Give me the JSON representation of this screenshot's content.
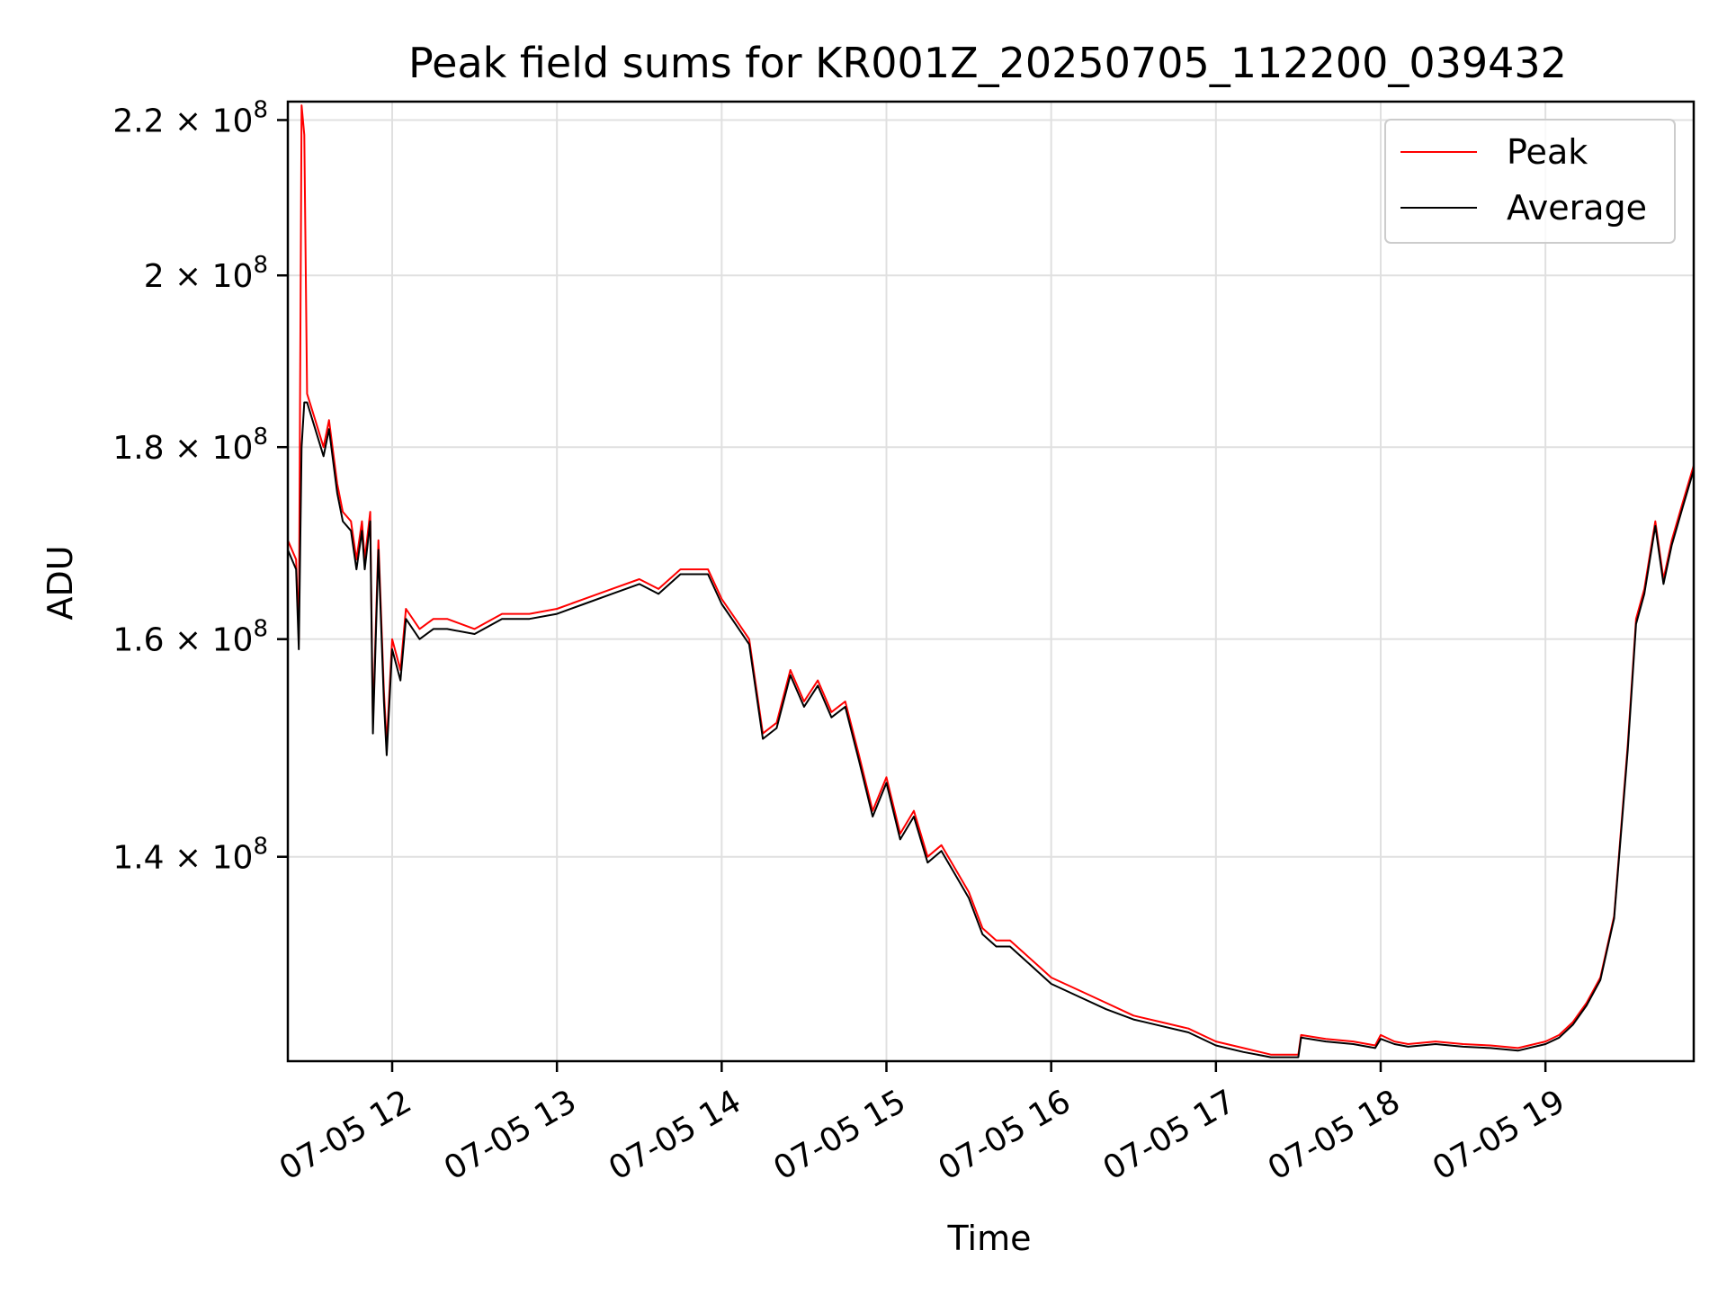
{
  "chart_data": {
    "type": "line",
    "title": "Peak field sums for KR001Z_20250705_112200_039432",
    "xlabel": "Time",
    "ylabel": "ADU",
    "x_ticks": [
      "07-05 12",
      "07-05 13",
      "07-05 14",
      "07-05 15",
      "07-05 16",
      "07-05 17",
      "07-05 18",
      "07-05 19"
    ],
    "y_ticks": [
      {
        "value": 140000000,
        "mantissa": "1.4",
        "exp": "8"
      },
      {
        "value": 160000000,
        "mantissa": "1.6",
        "exp": "8"
      },
      {
        "value": 180000000,
        "mantissa": "1.8",
        "exp": "8"
      },
      {
        "value": 200000000,
        "mantissa": "2",
        "exp": "8"
      },
      {
        "value": 220000000,
        "mantissa": "2.2",
        "exp": "8"
      }
    ],
    "y_scale": "log",
    "xlim": [
      "2025-07-05 11:22",
      "2025-07-05 19:54"
    ],
    "ylim": [
      123500000,
      222500000
    ],
    "grid": true,
    "legend_position": "top-right",
    "colors": {
      "peak": "#ff0000",
      "average": "#000000"
    },
    "series": [
      {
        "name": "Peak",
        "color": "#ff0000",
        "points": [
          [
            "2025-07-05 11:22",
            170000000
          ],
          [
            "2025-07-05 11:25",
            168000000
          ],
          [
            "2025-07-05 11:26",
            160000000
          ],
          [
            "2025-07-05 11:27",
            222000000
          ],
          [
            "2025-07-05 11:28",
            218000000
          ],
          [
            "2025-07-05 11:29",
            186000000
          ],
          [
            "2025-07-05 11:32",
            183000000
          ],
          [
            "2025-07-05 11:35",
            180000000
          ],
          [
            "2025-07-05 11:37",
            183000000
          ],
          [
            "2025-07-05 11:40",
            176000000
          ],
          [
            "2025-07-05 11:42",
            173000000
          ],
          [
            "2025-07-05 11:45",
            172000000
          ],
          [
            "2025-07-05 11:47",
            168000000
          ],
          [
            "2025-07-05 11:49",
            172000000
          ],
          [
            "2025-07-05 11:50",
            168000000
          ],
          [
            "2025-07-05 11:52",
            173000000
          ],
          [
            "2025-07-05 11:53",
            152000000
          ],
          [
            "2025-07-05 11:55",
            170000000
          ],
          [
            "2025-07-05 11:57",
            155000000
          ],
          [
            "2025-07-05 11:58",
            150000000
          ],
          [
            "2025-07-05 12:00",
            160000000
          ],
          [
            "2025-07-05 12:03",
            157000000
          ],
          [
            "2025-07-05 12:05",
            163000000
          ],
          [
            "2025-07-05 12:10",
            161000000
          ],
          [
            "2025-07-05 12:15",
            162000000
          ],
          [
            "2025-07-05 12:20",
            162000000
          ],
          [
            "2025-07-05 12:30",
            161000000
          ],
          [
            "2025-07-05 12:40",
            162500000
          ],
          [
            "2025-07-05 12:50",
            162500000
          ],
          [
            "2025-07-05 13:00",
            163000000
          ],
          [
            "2025-07-05 13:10",
            164000000
          ],
          [
            "2025-07-05 13:20",
            165000000
          ],
          [
            "2025-07-05 13:30",
            166000000
          ],
          [
            "2025-07-05 13:37",
            165000000
          ],
          [
            "2025-07-05 13:45",
            167000000
          ],
          [
            "2025-07-05 13:55",
            167000000
          ],
          [
            "2025-07-05 14:00",
            164000000
          ],
          [
            "2025-07-05 14:05",
            162000000
          ],
          [
            "2025-07-05 14:10",
            160000000
          ],
          [
            "2025-07-05 14:15",
            151000000
          ],
          [
            "2025-07-05 14:20",
            152000000
          ],
          [
            "2025-07-05 14:25",
            157000000
          ],
          [
            "2025-07-05 14:30",
            154000000
          ],
          [
            "2025-07-05 14:35",
            156000000
          ],
          [
            "2025-07-05 14:40",
            153000000
          ],
          [
            "2025-07-05 14:45",
            154000000
          ],
          [
            "2025-07-05 14:50",
            149000000
          ],
          [
            "2025-07-05 14:55",
            144000000
          ],
          [
            "2025-07-05 15:00",
            147000000
          ],
          [
            "2025-07-05 15:05",
            142000000
          ],
          [
            "2025-07-05 15:10",
            144000000
          ],
          [
            "2025-07-05 15:15",
            140000000
          ],
          [
            "2025-07-05 15:20",
            141000000
          ],
          [
            "2025-07-05 15:25",
            139000000
          ],
          [
            "2025-07-05 15:30",
            137000000
          ],
          [
            "2025-07-05 15:35",
            134000000
          ],
          [
            "2025-07-05 15:40",
            133000000
          ],
          [
            "2025-07-05 15:45",
            133000000
          ],
          [
            "2025-07-05 15:50",
            132000000
          ],
          [
            "2025-07-05 15:55",
            131000000
          ],
          [
            "2025-07-05 16:00",
            130000000
          ],
          [
            "2025-07-05 16:10",
            129000000
          ],
          [
            "2025-07-05 16:20",
            128000000
          ],
          [
            "2025-07-05 16:30",
            127000000
          ],
          [
            "2025-07-05 16:40",
            126500000
          ],
          [
            "2025-07-05 16:50",
            126000000
          ],
          [
            "2025-07-05 17:00",
            125000000
          ],
          [
            "2025-07-05 17:10",
            124500000
          ],
          [
            "2025-07-05 17:20",
            124000000
          ],
          [
            "2025-07-05 17:30",
            124000000
          ],
          [
            "2025-07-05 17:31",
            125500000
          ],
          [
            "2025-07-05 17:40",
            125200000
          ],
          [
            "2025-07-05 17:50",
            125000000
          ],
          [
            "2025-07-05 17:58",
            124700000
          ],
          [
            "2025-07-05 18:00",
            125500000
          ],
          [
            "2025-07-05 18:05",
            125000000
          ],
          [
            "2025-07-05 18:10",
            124800000
          ],
          [
            "2025-07-05 18:20",
            125000000
          ],
          [
            "2025-07-05 18:30",
            124800000
          ],
          [
            "2025-07-05 18:40",
            124700000
          ],
          [
            "2025-07-05 18:50",
            124500000
          ],
          [
            "2025-07-05 19:00",
            125000000
          ],
          [
            "2025-07-05 19:05",
            125500000
          ],
          [
            "2025-07-05 19:10",
            126500000
          ],
          [
            "2025-07-05 19:15",
            128000000
          ],
          [
            "2025-07-05 19:20",
            130000000
          ],
          [
            "2025-07-05 19:25",
            135000000
          ],
          [
            "2025-07-05 19:30",
            150000000
          ],
          [
            "2025-07-05 19:33",
            162000000
          ],
          [
            "2025-07-05 19:36",
            165000000
          ],
          [
            "2025-07-05 19:40",
            172000000
          ],
          [
            "2025-07-05 19:43",
            166000000
          ],
          [
            "2025-07-05 19:46",
            170000000
          ],
          [
            "2025-07-05 19:50",
            174000000
          ],
          [
            "2025-07-05 19:54",
            178000000
          ]
        ]
      },
      {
        "name": "Average",
        "color": "#000000",
        "points": [
          [
            "2025-07-05 11:22",
            169000000
          ],
          [
            "2025-07-05 11:25",
            167000000
          ],
          [
            "2025-07-05 11:26",
            159000000
          ],
          [
            "2025-07-05 11:27",
            180000000
          ],
          [
            "2025-07-05 11:28",
            185000000
          ],
          [
            "2025-07-05 11:29",
            185000000
          ],
          [
            "2025-07-05 11:32",
            182000000
          ],
          [
            "2025-07-05 11:35",
            179000000
          ],
          [
            "2025-07-05 11:37",
            182000000
          ],
          [
            "2025-07-05 11:40",
            175000000
          ],
          [
            "2025-07-05 11:42",
            172000000
          ],
          [
            "2025-07-05 11:45",
            171000000
          ],
          [
            "2025-07-05 11:47",
            167000000
          ],
          [
            "2025-07-05 11:49",
            171000000
          ],
          [
            "2025-07-05 11:50",
            167000000
          ],
          [
            "2025-07-05 11:52",
            172000000
          ],
          [
            "2025-07-05 11:53",
            151000000
          ],
          [
            "2025-07-05 11:55",
            169000000
          ],
          [
            "2025-07-05 11:57",
            154000000
          ],
          [
            "2025-07-05 11:58",
            149000000
          ],
          [
            "2025-07-05 12:00",
            159000000
          ],
          [
            "2025-07-05 12:03",
            156000000
          ],
          [
            "2025-07-05 12:05",
            162000000
          ],
          [
            "2025-07-05 12:10",
            160000000
          ],
          [
            "2025-07-05 12:15",
            161000000
          ],
          [
            "2025-07-05 12:20",
            161000000
          ],
          [
            "2025-07-05 12:30",
            160500000
          ],
          [
            "2025-07-05 12:40",
            162000000
          ],
          [
            "2025-07-05 12:50",
            162000000
          ],
          [
            "2025-07-05 13:00",
            162500000
          ],
          [
            "2025-07-05 13:10",
            163500000
          ],
          [
            "2025-07-05 13:20",
            164500000
          ],
          [
            "2025-07-05 13:30",
            165500000
          ],
          [
            "2025-07-05 13:37",
            164500000
          ],
          [
            "2025-07-05 13:45",
            166500000
          ],
          [
            "2025-07-05 13:55",
            166500000
          ],
          [
            "2025-07-05 14:00",
            163500000
          ],
          [
            "2025-07-05 14:05",
            161500000
          ],
          [
            "2025-07-05 14:10",
            159500000
          ],
          [
            "2025-07-05 14:15",
            150500000
          ],
          [
            "2025-07-05 14:20",
            151500000
          ],
          [
            "2025-07-05 14:25",
            156500000
          ],
          [
            "2025-07-05 14:30",
            153500000
          ],
          [
            "2025-07-05 14:35",
            155500000
          ],
          [
            "2025-07-05 14:40",
            152500000
          ],
          [
            "2025-07-05 14:45",
            153500000
          ],
          [
            "2025-07-05 14:50",
            148500000
          ],
          [
            "2025-07-05 14:55",
            143500000
          ],
          [
            "2025-07-05 15:00",
            146500000
          ],
          [
            "2025-07-05 15:05",
            141500000
          ],
          [
            "2025-07-05 15:10",
            143500000
          ],
          [
            "2025-07-05 15:15",
            139500000
          ],
          [
            "2025-07-05 15:20",
            140500000
          ],
          [
            "2025-07-05 15:25",
            138500000
          ],
          [
            "2025-07-05 15:30",
            136500000
          ],
          [
            "2025-07-05 15:35",
            133500000
          ],
          [
            "2025-07-05 15:40",
            132500000
          ],
          [
            "2025-07-05 15:45",
            132500000
          ],
          [
            "2025-07-05 15:50",
            131500000
          ],
          [
            "2025-07-05 15:55",
            130500000
          ],
          [
            "2025-07-05 16:00",
            129500000
          ],
          [
            "2025-07-05 16:10",
            128500000
          ],
          [
            "2025-07-05 16:20",
            127500000
          ],
          [
            "2025-07-05 16:30",
            126700000
          ],
          [
            "2025-07-05 16:40",
            126200000
          ],
          [
            "2025-07-05 16:50",
            125700000
          ],
          [
            "2025-07-05 17:00",
            124700000
          ],
          [
            "2025-07-05 17:10",
            124200000
          ],
          [
            "2025-07-05 17:20",
            123800000
          ],
          [
            "2025-07-05 17:30",
            123800000
          ],
          [
            "2025-07-05 17:31",
            125300000
          ],
          [
            "2025-07-05 17:40",
            125000000
          ],
          [
            "2025-07-05 17:50",
            124800000
          ],
          [
            "2025-07-05 17:58",
            124500000
          ],
          [
            "2025-07-05 18:00",
            125200000
          ],
          [
            "2025-07-05 18:05",
            124800000
          ],
          [
            "2025-07-05 18:10",
            124600000
          ],
          [
            "2025-07-05 18:20",
            124800000
          ],
          [
            "2025-07-05 18:30",
            124600000
          ],
          [
            "2025-07-05 18:40",
            124500000
          ],
          [
            "2025-07-05 18:50",
            124300000
          ],
          [
            "2025-07-05 19:00",
            124800000
          ],
          [
            "2025-07-05 19:05",
            125300000
          ],
          [
            "2025-07-05 19:10",
            126300000
          ],
          [
            "2025-07-05 19:15",
            127800000
          ],
          [
            "2025-07-05 19:20",
            129800000
          ],
          [
            "2025-07-05 19:25",
            134800000
          ],
          [
            "2025-07-05 19:30",
            149500000
          ],
          [
            "2025-07-05 19:33",
            161500000
          ],
          [
            "2025-07-05 19:36",
            164500000
          ],
          [
            "2025-07-05 19:40",
            171500000
          ],
          [
            "2025-07-05 19:43",
            165500000
          ],
          [
            "2025-07-05 19:46",
            169500000
          ],
          [
            "2025-07-05 19:50",
            173500000
          ],
          [
            "2025-07-05 19:54",
            177500000
          ]
        ]
      }
    ]
  }
}
